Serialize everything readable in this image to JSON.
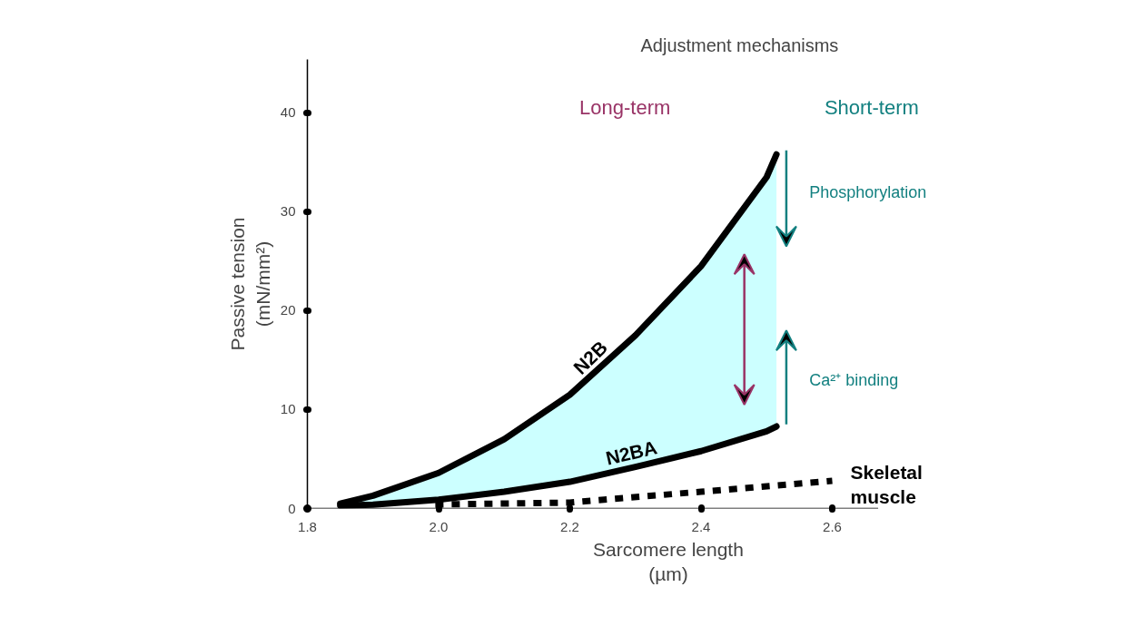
{
  "chart_data": {
    "type": "line",
    "title": "Adjustment mechanisms",
    "xlabel": "Sarcomere length\n(µm)",
    "ylabel": "Passive tension\n(mN/mm²)",
    "x": [
      1.85,
      1.9,
      2.0,
      2.1,
      2.2,
      2.3,
      2.4,
      2.5,
      2.515
    ],
    "series": [
      {
        "name": "N2B",
        "color": "#000000",
        "values": [
          0.5,
          1.3,
          3.6,
          7.0,
          11.5,
          17.5,
          24.5,
          33.5,
          35.8
        ],
        "lower": [
          0.3,
          0.4,
          0.9,
          1.7,
          2.7,
          4.2,
          5.8,
          7.8,
          8.3
        ],
        "upper": [
          0.5,
          1.3,
          3.6,
          7.0,
          11.5,
          17.5,
          24.5,
          33.5,
          35.8
        ]
      },
      {
        "name": "N2BA",
        "color": "#000000",
        "values": [
          0.3,
          0.4,
          0.9,
          1.7,
          2.7,
          4.2,
          5.8,
          7.8,
          8.3
        ]
      },
      {
        "name": "Skeletal muscle",
        "color": "#000000",
        "line_style": "dotted",
        "x": [
          1.995,
          2.2,
          2.4,
          2.6
        ],
        "values": [
          0.4,
          0.6,
          1.7,
          2.8
        ]
      }
    ],
    "annotations": [
      "Long-term",
      "Short-term",
      "Phosphorylation",
      "Ca²⁺ binding"
    ],
    "xlim": [
      1.8,
      2.67
    ],
    "ylim": [
      0,
      45.4
    ],
    "xticks": [
      1.8,
      {
        "value": 2.0,
        "label": "2.0"
      },
      2.2,
      2.4,
      2.6
    ],
    "yticks": [
      0,
      10,
      20,
      30,
      40
    ],
    "grid": false,
    "legend": false,
    "marker": "none",
    "line_style": "solid"
  }
}
